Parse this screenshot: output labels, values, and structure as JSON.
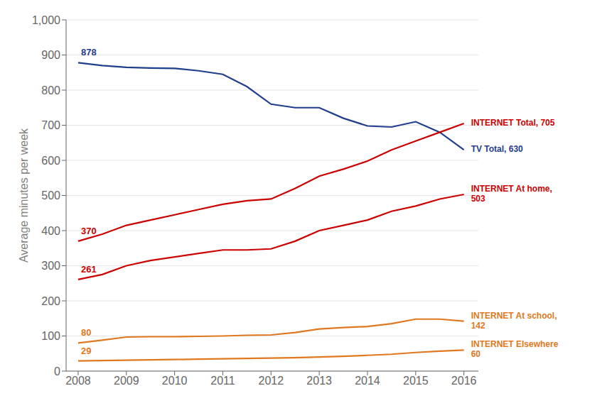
{
  "chart_data": {
    "type": "line",
    "ylabel": "Average minutes per week",
    "x": [
      2008,
      2008.5,
      2009,
      2009.5,
      2010,
      2010.5,
      2011,
      2011.5,
      2012,
      2012.5,
      2013,
      2013.5,
      2014,
      2014.5,
      2015,
      2015.5,
      2016
    ],
    "xlim": [
      2007.75,
      2016.3
    ],
    "xticks": [
      2008,
      2009,
      2010,
      2011,
      2012,
      2013,
      2014,
      2015,
      2016
    ],
    "ylim": [
      0,
      1000
    ],
    "yticks": [
      0,
      100,
      200,
      300,
      400,
      500,
      600,
      700,
      800,
      900,
      {
        "value": 1000,
        "label": "1,000"
      }
    ],
    "grid": true,
    "series": [
      {
        "color": "#1f3e8c",
        "values": [
          878,
          870,
          865,
          863,
          862,
          855,
          845,
          810,
          760,
          750,
          750,
          720,
          698,
          695,
          710,
          680,
          630
        ],
        "start_label": "878",
        "end_label": "TV Total, 630"
      },
      {
        "color": "#cc0000",
        "values": [
          370,
          390,
          415,
          430,
          445,
          460,
          475,
          485,
          490,
          520,
          555,
          575,
          598,
          630,
          655,
          680,
          705
        ],
        "start_label": "370",
        "end_label": "INTERNET Total, 705"
      },
      {
        "color": "#cc0000",
        "values": [
          261,
          275,
          300,
          315,
          325,
          335,
          345,
          345,
          348,
          370,
          400,
          415,
          430,
          455,
          470,
          490,
          503
        ],
        "start_label": "261",
        "end_label": "INTERNET At home,\n503"
      },
      {
        "color": "#e07820",
        "values": [
          80,
          88,
          97,
          98,
          98,
          99,
          100,
          102,
          103,
          110,
          120,
          124,
          127,
          135,
          148,
          148,
          142
        ],
        "start_label": "80",
        "end_label": "INTERNET At school,\n142"
      },
      {
        "color": "#e07820",
        "values": [
          29,
          30,
          31,
          32,
          33,
          34,
          35,
          36,
          37,
          38,
          40,
          42,
          45,
          48,
          53,
          57,
          60
        ],
        "start_label": "29",
        "end_label": "INTERNET Elsewhere\n60"
      }
    ]
  }
}
